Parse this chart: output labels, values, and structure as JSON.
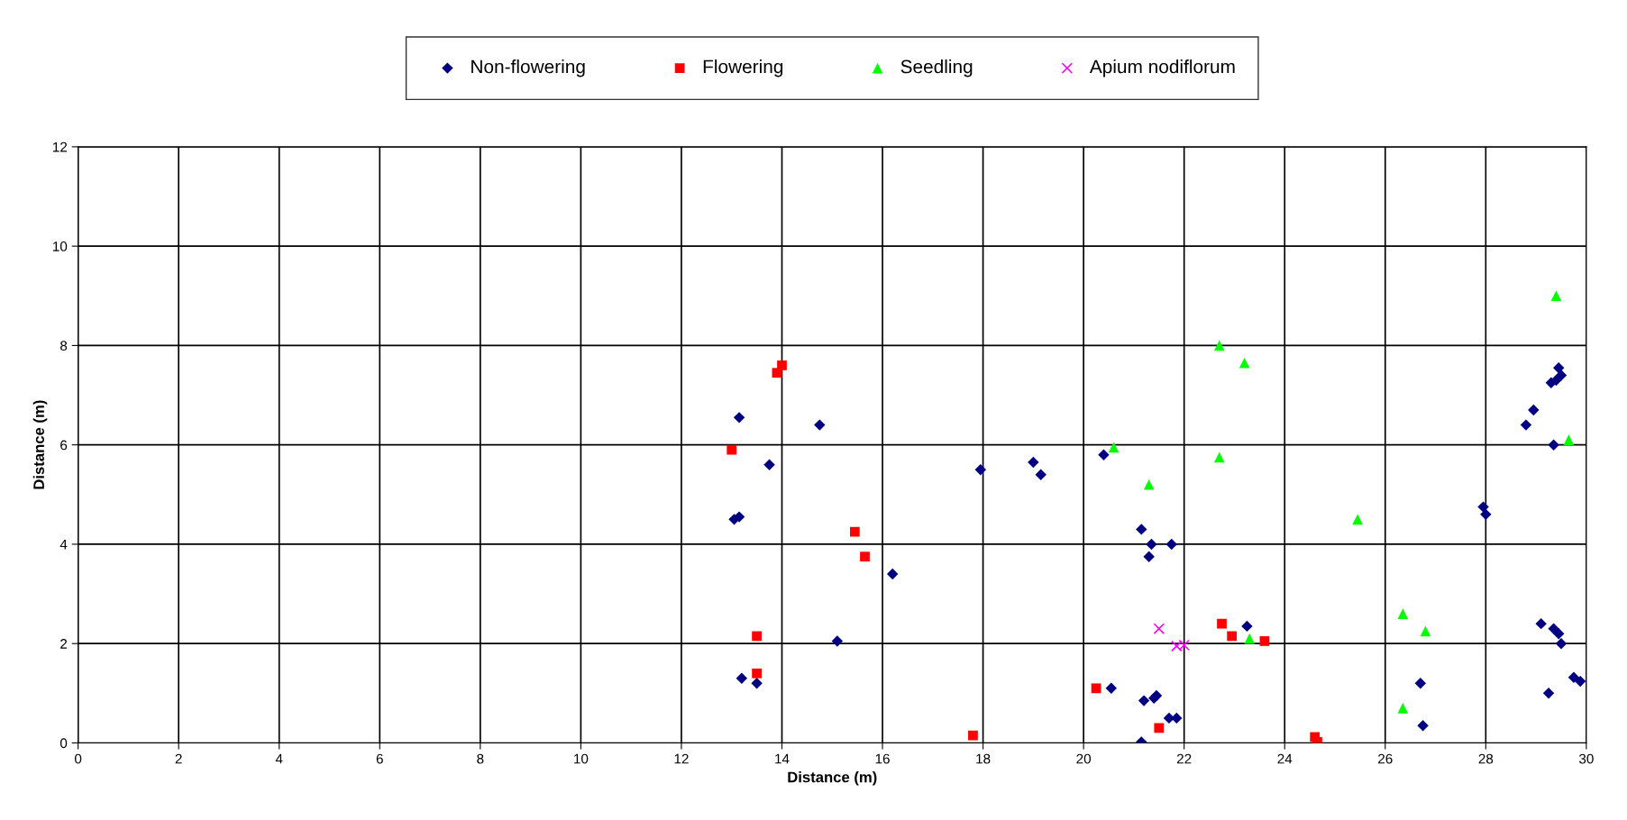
{
  "chart_data": {
    "type": "scatter",
    "xlabel": "Distance (m)",
    "ylabel": "Distance (m)",
    "xlim": [
      0,
      30
    ],
    "ylim": [
      0,
      12
    ],
    "xticks": [
      0,
      2,
      4,
      6,
      8,
      10,
      12,
      14,
      16,
      18,
      20,
      22,
      24,
      26,
      28,
      30
    ],
    "yticks": [
      0,
      2,
      4,
      6,
      8,
      10,
      12
    ],
    "grid": true,
    "legend": "top",
    "series": [
      {
        "name": "Non-flowering",
        "color": "#000080",
        "marker": "diamond",
        "x": [
          13.15,
          14.75,
          13.75,
          13.05,
          13.15,
          16.2,
          15.1,
          13.2,
          13.5,
          17.95,
          19.0,
          19.15,
          20.4,
          21.15,
          21.35,
          21.75,
          21.3,
          20.55,
          21.2,
          21.45,
          21.4,
          21.7,
          21.85,
          21.15,
          23.25,
          26.7,
          26.75,
          27.95,
          28.0,
          28.8,
          28.95,
          29.3,
          29.4,
          29.45,
          29.5,
          29.35,
          29.1,
          29.35,
          29.45,
          29.5,
          29.25,
          29.75,
          29.88
        ],
        "values": [
          6.55,
          6.4,
          5.6,
          4.5,
          4.55,
          3.4,
          2.05,
          1.3,
          1.2,
          5.5,
          5.65,
          5.4,
          5.8,
          4.3,
          4.0,
          4.0,
          3.75,
          1.1,
          0.85,
          0.95,
          0.9,
          0.5,
          0.5,
          0.02,
          2.35,
          1.2,
          0.35,
          4.75,
          4.6,
          6.4,
          6.7,
          7.25,
          7.3,
          7.55,
          7.4,
          6.0,
          2.4,
          2.3,
          2.2,
          2.0,
          1.0,
          1.32,
          1.24
        ]
      },
      {
        "name": "Flowering",
        "color": "#ff0000",
        "marker": "square",
        "x": [
          13.0,
          13.9,
          14.0,
          15.45,
          15.65,
          13.5,
          13.5,
          17.8,
          20.25,
          21.5,
          22.75,
          22.95,
          23.6,
          24.6,
          24.65
        ],
        "values": [
          5.9,
          7.45,
          7.6,
          4.25,
          3.75,
          2.15,
          1.4,
          0.15,
          1.1,
          0.3,
          2.4,
          2.15,
          2.05,
          0.12,
          0.02
        ]
      },
      {
        "name": "Seedling",
        "color": "#00ff00",
        "marker": "triangle",
        "x": [
          20.6,
          21.3,
          22.7,
          23.2,
          22.7,
          25.45,
          23.3,
          26.35,
          26.8,
          26.35,
          29.4,
          29.65
        ],
        "values": [
          5.95,
          5.2,
          8.0,
          7.65,
          5.75,
          4.5,
          2.1,
          2.6,
          2.25,
          0.7,
          9.0,
          6.1
        ]
      },
      {
        "name": "Apium nodiflorum",
        "color": "#ff00ff",
        "marker": "cross",
        "x": [
          21.5,
          21.85,
          22.0
        ],
        "values": [
          2.3,
          1.95,
          1.97
        ]
      }
    ]
  }
}
